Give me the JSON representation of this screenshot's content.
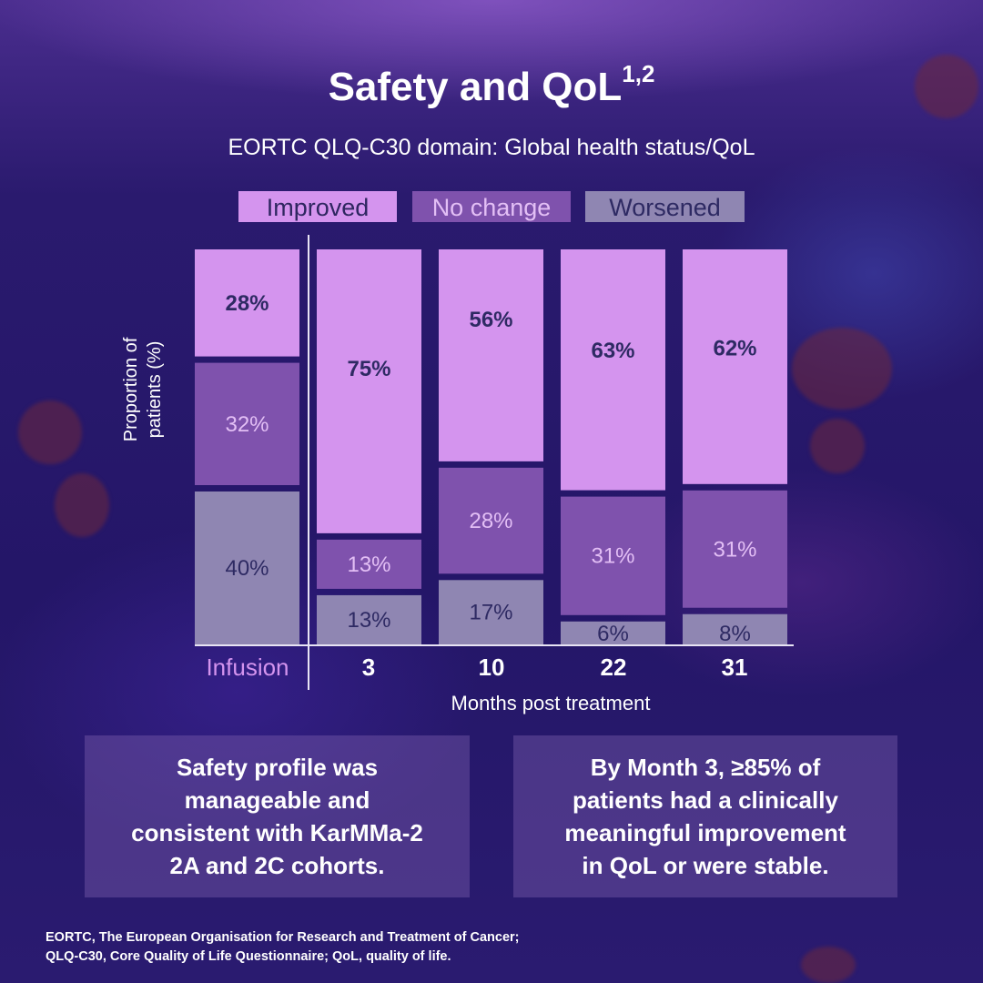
{
  "title": "Safety and QoL",
  "title_superscript": "1,2",
  "subtitle": "EORTC QLQ-C30 domain: Global health status/QoL",
  "colors": {
    "improved": "#d494ee",
    "no_change": "#7f52ad",
    "worsened": "#8f86b2",
    "dark_text": "#2e2a63",
    "light_text": "#e3bff5",
    "infusion_label": "#d494ee"
  },
  "chart_data": {
    "type": "bar",
    "stacked": true,
    "title": "EORTC QLQ-C30 domain: Global health status/QoL",
    "xlabel": "Months post treatment",
    "ylabel": "Proportion of patients (%)",
    "ylim": [
      0,
      100
    ],
    "categories": [
      "Infusion",
      "3",
      "10",
      "22",
      "31"
    ],
    "legend": [
      "Improved",
      "No change",
      "Worsened"
    ],
    "legend_position": "top",
    "series": [
      {
        "name": "Improved",
        "values": [
          28,
          75,
          56,
          63,
          62
        ],
        "labels": [
          "28%",
          "75%",
          "56%",
          "63%",
          "62%"
        ]
      },
      {
        "name": "No change",
        "values": [
          32,
          13,
          28,
          31,
          31
        ],
        "labels": [
          "32%",
          "13%",
          "28%",
          "31%",
          "31%"
        ]
      },
      {
        "name": "Worsened",
        "values": [
          40,
          13,
          17,
          6,
          8
        ],
        "labels": [
          "40%",
          "13%",
          "17%",
          "6%",
          "8%"
        ]
      }
    ]
  },
  "ylabel_lines": [
    "Proportion of",
    "patients (%)"
  ],
  "callouts": [
    "Safety profile was manageable and consistent with KarMMa-2 2A and 2C cohorts.",
    "By Month 3, ≥85% of patients had a clinically meaningful improvement in QoL or were stable."
  ],
  "footnote_lines": [
    "EORTC, The European Organisation for Research and Treatment of Cancer;",
    "QLQ-C30, Core Quality of Life Questionnaire; QoL, quality of life."
  ]
}
